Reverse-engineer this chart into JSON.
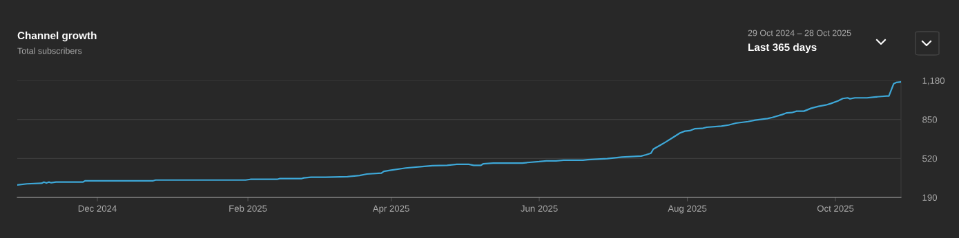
{
  "chart_data": {
    "type": "line",
    "title": "Channel growth",
    "subtitle": "Total subscribers",
    "annotations": [
      "29 Oct 2024 – 28 Oct 2025",
      "Last 365 days"
    ],
    "x": [
      "2024-10-29",
      "2024-11-02",
      "2024-11-08",
      "2024-11-09",
      "2024-11-10",
      "2024-11-11",
      "2024-11-12",
      "2024-11-14",
      "2024-11-25",
      "2024-11-26",
      "2024-12-24",
      "2024-12-25",
      "2025-01-31",
      "2025-02-02",
      "2025-02-13",
      "2025-02-14",
      "2025-02-23",
      "2025-02-24",
      "2025-02-27",
      "2025-03-05",
      "2025-03-14",
      "2025-03-19",
      "2025-03-22",
      "2025-03-28",
      "2025-03-29",
      "2025-04-01",
      "2025-04-07",
      "2025-04-13",
      "2025-04-18",
      "2025-04-24",
      "2025-04-28",
      "2025-05-03",
      "2025-05-05",
      "2025-05-08",
      "2025-05-09",
      "2025-05-13",
      "2025-05-25",
      "2025-05-28",
      "2025-06-01",
      "2025-06-04",
      "2025-06-08",
      "2025-06-11",
      "2025-06-19",
      "2025-06-21",
      "2025-06-29",
      "2025-07-05",
      "2025-07-13",
      "2025-07-15",
      "2025-07-17",
      "2025-07-18",
      "2025-07-21",
      "2025-07-23",
      "2025-07-26",
      "2025-07-29",
      "2025-07-31",
      "2025-08-02",
      "2025-08-04",
      "2025-08-07",
      "2025-08-09",
      "2025-08-15",
      "2025-08-18",
      "2025-08-21",
      "2025-08-26",
      "2025-08-29",
      "2025-09-03",
      "2025-09-05",
      "2025-09-09",
      "2025-09-11",
      "2025-09-13",
      "2025-09-15",
      "2025-09-18",
      "2025-09-21",
      "2025-09-24",
      "2025-09-27",
      "2025-09-29",
      "2025-10-02",
      "2025-10-04",
      "2025-10-06",
      "2025-10-07",
      "2025-10-09",
      "2025-10-14",
      "2025-10-17",
      "2025-10-22",
      "2025-10-23",
      "2025-10-25",
      "2025-10-26",
      "2025-10-28"
    ],
    "series": [
      {
        "color": "#3ea8d8",
        "values": [
          295,
          305,
          310,
          320,
          312,
          320,
          314,
          320,
          320,
          331,
          331,
          337,
          337,
          343,
          343,
          349,
          349,
          355,
          361,
          361,
          366,
          376,
          388,
          396,
          411,
          421,
          439,
          450,
          458,
          462,
          470,
          470,
          462,
          462,
          475,
          481,
          481,
          487,
          493,
          499,
          499,
          505,
          505,
          510,
          518,
          532,
          540,
          551,
          564,
          599,
          634,
          658,
          697,
          736,
          751,
          755,
          771,
          774,
          784,
          794,
          803,
          819,
          832,
          844,
          858,
          867,
          891,
          906,
          908,
          920,
          920,
          945,
          961,
          972,
          984,
          1007,
          1027,
          1033,
          1025,
          1033,
          1033,
          1040,
          1048,
          1048,
          1153,
          1163,
          1168
        ]
      }
    ],
    "xlim": [
      "2024-10-29",
      "2025-10-28"
    ],
    "xticks": [
      {
        "value": "2024-12-01",
        "label": "Dec 2024"
      },
      {
        "value": "2025-02-01",
        "label": "Feb 2025"
      },
      {
        "value": "2025-04-01",
        "label": "Apr 2025"
      },
      {
        "value": "2025-06-01",
        "label": "Jun 2025"
      },
      {
        "value": "2025-08-01",
        "label": "Aug 2025"
      },
      {
        "value": "2025-10-01",
        "label": "Oct 2025"
      }
    ],
    "ylim": [
      190,
      1180
    ],
    "yticks": [
      190,
      520,
      850,
      {
        "value": 1180,
        "label": "1,180"
      }
    ],
    "grid": "y",
    "marker": "none",
    "line_style": "solid"
  }
}
